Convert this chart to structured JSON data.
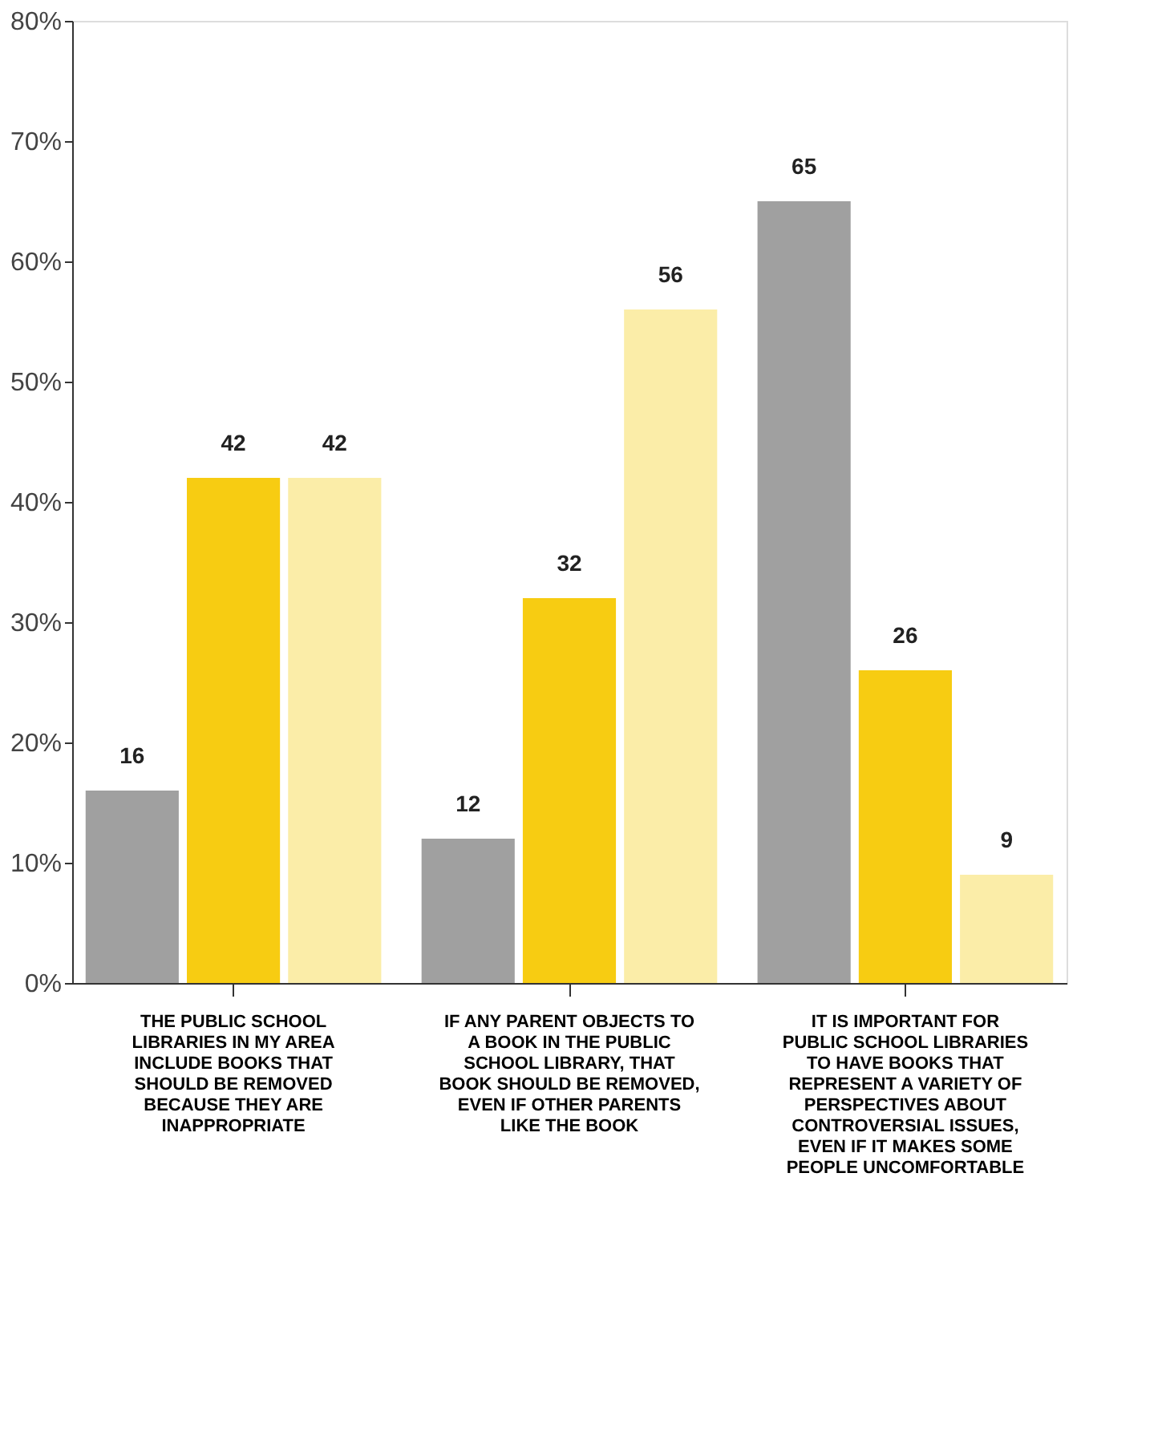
{
  "chart_data": {
    "type": "bar",
    "categories": [
      "THE PUBLIC SCHOOL LIBRARIES IN MY AREA INCLUDE BOOKS THAT SHOULD BE REMOVED BECAUSE THEY ARE INAPPROPRIATE",
      "IF ANY PARENT OBJECTS TO A BOOK IN THE PUBLIC SCHOOL LIBRARY, THAT BOOK SHOULD BE REMOVED, EVEN IF OTHER PARENTS LIKE THE BOOK",
      "IT IS IMPORTANT FOR PUBLIC SCHOOL LIBRARIES TO HAVE BOOKS THAT REPRESENT A VARIETY OF PERSPECTIVES ABOUT CONTROVERSIAL ISSUES, EVEN IF IT MAKES SOME PEOPLE UNCOMFORTABLE"
    ],
    "series": [
      {
        "color": "#a0a0a0",
        "values": [
          16,
          12,
          65
        ]
      },
      {
        "color": "#f7cc12",
        "values": [
          42,
          32,
          26
        ]
      },
      {
        "color": "#fbeda8",
        "values": [
          42,
          56,
          9
        ]
      }
    ],
    "ylim": [
      0,
      80
    ],
    "yticks": [
      {
        "value": 0,
        "label": "0%"
      },
      {
        "value": 10,
        "label": "10%"
      },
      {
        "value": 20,
        "label": "20%"
      },
      {
        "value": 30,
        "label": "30%"
      },
      {
        "value": 40,
        "label": "40%"
      },
      {
        "value": 50,
        "label": "50%"
      },
      {
        "value": 60,
        "label": "60%"
      },
      {
        "value": 70,
        "label": "70%"
      },
      {
        "value": 80,
        "label": "80%"
      }
    ],
    "grid": false,
    "data_labels": true
  }
}
